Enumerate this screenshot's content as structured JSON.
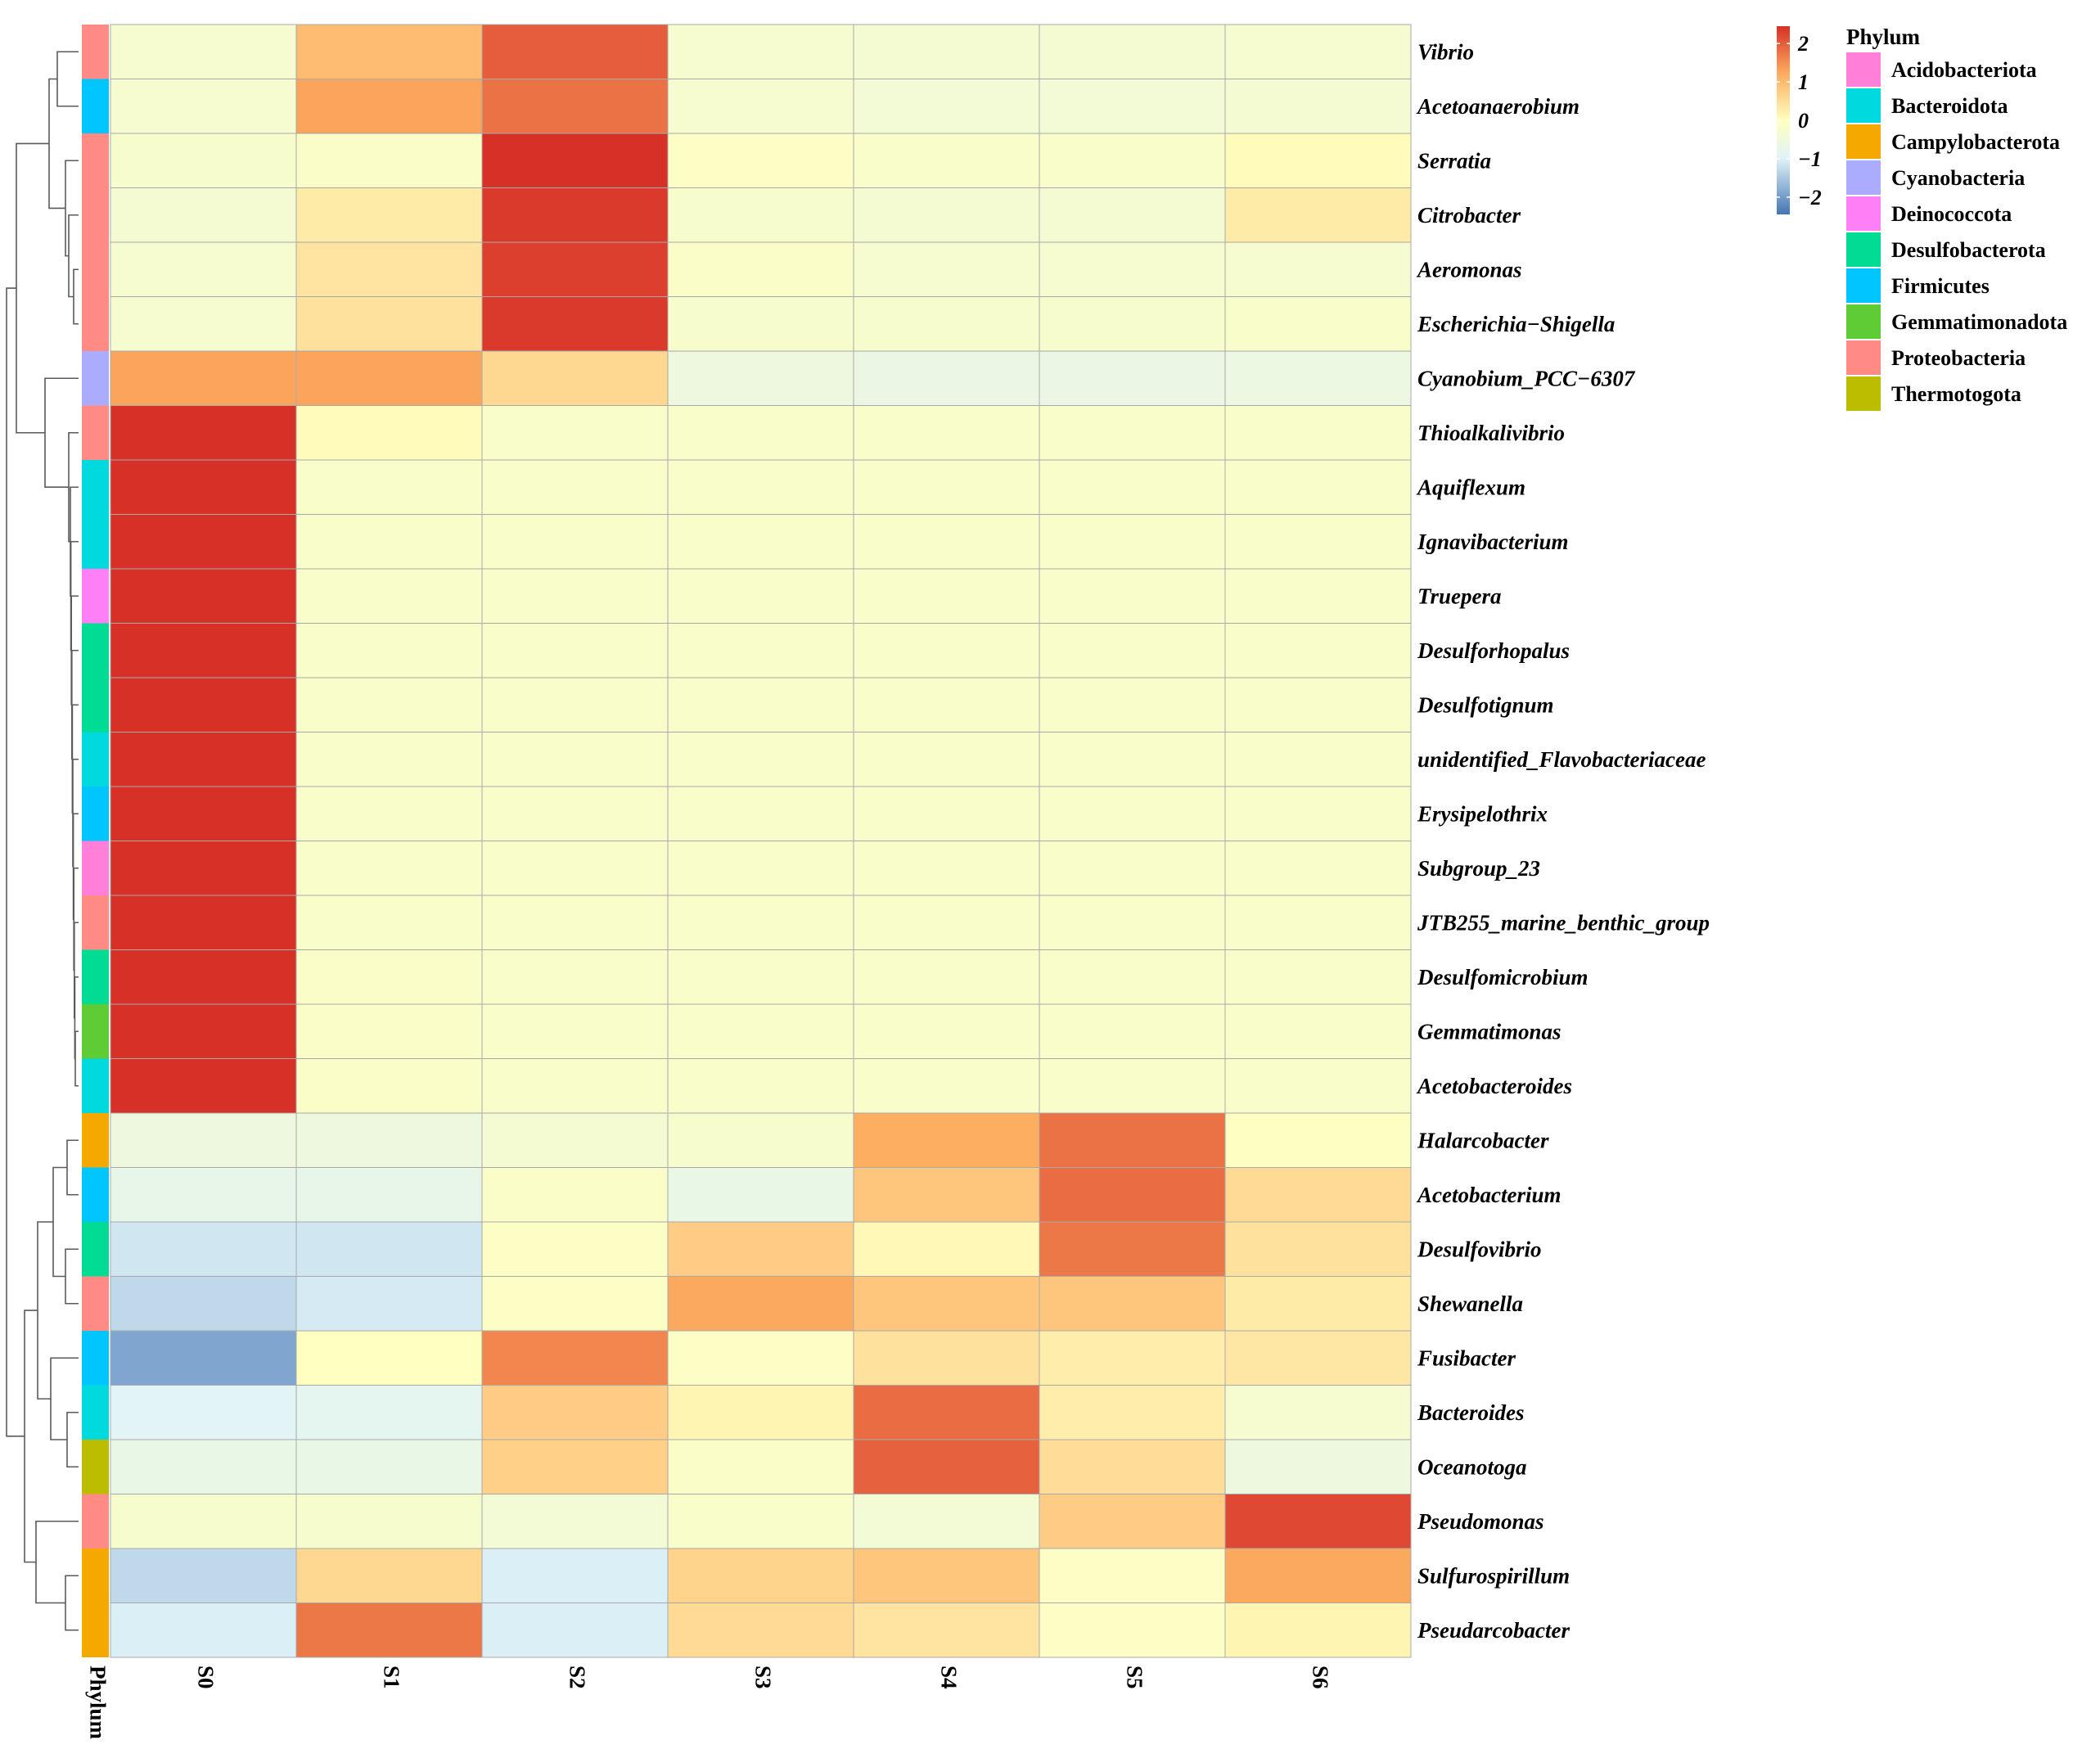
{
  "chart_data": {
    "type": "heatmap",
    "columns": [
      "S0",
      "S1",
      "S2",
      "S3",
      "S4",
      "S5",
      "S6"
    ],
    "rows": [
      {
        "label": "Vibrio",
        "phylum": "Proteobacteria",
        "values": [
          -0.3,
          1.0,
          2.0,
          -0.3,
          -0.35,
          -0.35,
          -0.3
        ]
      },
      {
        "label": "Acetoanaerobium",
        "phylum": "Firmicutes",
        "values": [
          -0.3,
          1.3,
          1.8,
          -0.3,
          -0.4,
          -0.4,
          -0.35
        ]
      },
      {
        "label": "Serratia",
        "phylum": "Proteobacteria",
        "values": [
          -0.25,
          -0.15,
          2.45,
          -0.1,
          -0.2,
          -0.2,
          0.05
        ]
      },
      {
        "label": "Citrobacter",
        "phylum": "Proteobacteria",
        "values": [
          -0.35,
          0.3,
          2.35,
          -0.25,
          -0.35,
          -0.35,
          0.3
        ]
      },
      {
        "label": "Aeromonas",
        "phylum": "Proteobacteria",
        "values": [
          -0.3,
          0.4,
          2.3,
          -0.15,
          -0.3,
          -0.3,
          -0.3
        ]
      },
      {
        "label": "Escherichia−Shigella",
        "phylum": "Proteobacteria",
        "values": [
          -0.3,
          0.45,
          2.35,
          -0.25,
          -0.25,
          -0.25,
          -0.2
        ]
      },
      {
        "label": "Cyanobium_PCC−6307",
        "phylum": "Cyanobacteria",
        "values": [
          1.3,
          1.3,
          0.6,
          -0.55,
          -0.65,
          -0.65,
          -0.6
        ]
      },
      {
        "label": "Thioalkalivibrio",
        "phylum": "Proteobacteria",
        "values": [
          2.45,
          0.05,
          -0.2,
          -0.2,
          -0.2,
          -0.2,
          -0.2
        ]
      },
      {
        "label": "Aquiflexum",
        "phylum": "Bacteroidota",
        "values": [
          2.45,
          -0.2,
          -0.2,
          -0.2,
          -0.2,
          -0.2,
          -0.2
        ]
      },
      {
        "label": "Ignavibacterium",
        "phylum": "Bacteroidota",
        "values": [
          2.45,
          -0.2,
          -0.2,
          -0.2,
          -0.2,
          -0.2,
          -0.2
        ]
      },
      {
        "label": "Truepera",
        "phylum": "Deinococcota",
        "values": [
          2.45,
          -0.2,
          -0.2,
          -0.2,
          -0.2,
          -0.2,
          -0.2
        ]
      },
      {
        "label": "Desulforhopalus",
        "phylum": "Desulfobacterota",
        "values": [
          2.45,
          -0.2,
          -0.2,
          -0.2,
          -0.2,
          -0.2,
          -0.2
        ]
      },
      {
        "label": "Desulfotignum",
        "phylum": "Desulfobacterota",
        "values": [
          2.45,
          -0.2,
          -0.2,
          -0.2,
          -0.2,
          -0.2,
          -0.2
        ]
      },
      {
        "label": "unidentified_Flavobacteriaceae",
        "phylum": "Bacteroidota",
        "values": [
          2.45,
          -0.2,
          -0.2,
          -0.2,
          -0.2,
          -0.2,
          -0.2
        ]
      },
      {
        "label": "Erysipelothrix",
        "phylum": "Firmicutes",
        "values": [
          2.45,
          -0.2,
          -0.2,
          -0.2,
          -0.2,
          -0.2,
          -0.2
        ]
      },
      {
        "label": "Subgroup_23",
        "phylum": "Acidobacteriota",
        "values": [
          2.45,
          -0.2,
          -0.2,
          -0.2,
          -0.2,
          -0.2,
          -0.2
        ]
      },
      {
        "label": "JTB255_marine_benthic_group",
        "phylum": "Proteobacteria",
        "values": [
          2.45,
          -0.2,
          -0.2,
          -0.2,
          -0.2,
          -0.2,
          -0.2
        ]
      },
      {
        "label": "Desulfomicrobium",
        "phylum": "Desulfobacterota",
        "values": [
          2.45,
          -0.15,
          -0.2,
          -0.2,
          -0.2,
          -0.2,
          -0.2
        ]
      },
      {
        "label": "Gemmatimonas",
        "phylum": "Gemmatimonadota",
        "values": [
          2.45,
          -0.15,
          -0.2,
          -0.2,
          -0.2,
          -0.2,
          -0.2
        ]
      },
      {
        "label": "Acetobacteroides",
        "phylum": "Bacteroidota",
        "values": [
          2.45,
          -0.15,
          -0.2,
          -0.2,
          -0.2,
          -0.2,
          -0.2
        ]
      },
      {
        "label": "Halarcobacter",
        "phylum": "Campylobacterota",
        "values": [
          -0.55,
          -0.55,
          -0.35,
          -0.25,
          1.2,
          1.8,
          -0.05
        ]
      },
      {
        "label": "Acetobacterium",
        "phylum": "Firmicutes",
        "values": [
          -0.75,
          -0.75,
          -0.15,
          -0.7,
          0.85,
          1.85,
          0.55
        ]
      },
      {
        "label": "Desulfovibrio",
        "phylum": "Desulfobacterota",
        "values": [
          -1.15,
          -1.15,
          -0.1,
          0.75,
          0.1,
          1.75,
          0.45
        ]
      },
      {
        "label": "Shewanella",
        "phylum": "Proteobacteria",
        "values": [
          -1.3,
          -1.1,
          -0.1,
          1.25,
          0.85,
          0.85,
          0.3
        ]
      },
      {
        "label": "Fusibacter",
        "phylum": "Firmicutes",
        "values": [
          -1.9,
          0.0,
          1.6,
          -0.1,
          0.45,
          0.25,
          0.35
        ]
      },
      {
        "label": "Bacteroides",
        "phylum": "Bacteroidota",
        "values": [
          -0.95,
          -0.85,
          0.75,
          0.15,
          1.85,
          0.25,
          -0.3
        ]
      },
      {
        "label": "Oceanotoga",
        "phylum": "Thermotogota",
        "values": [
          -0.7,
          -0.7,
          0.7,
          -0.15,
          1.95,
          0.5,
          -0.55
        ]
      },
      {
        "label": "Pseudomonas",
        "phylum": "Proteobacteria",
        "values": [
          -0.25,
          -0.25,
          -0.4,
          -0.2,
          -0.4,
          0.75,
          2.2
        ]
      },
      {
        "label": "Sulfurospirillum",
        "phylum": "Campylobacterota",
        "values": [
          -1.3,
          0.6,
          -1.05,
          0.65,
          0.85,
          -0.1,
          1.25
        ]
      },
      {
        "label": "Pseudarcobacter",
        "phylum": "Campylobacterota",
        "values": [
          -1.05,
          1.75,
          -1.05,
          0.55,
          0.4,
          -0.1,
          0.15
        ]
      }
    ],
    "colorbar": {
      "min": -2.45,
      "max": 2.45,
      "ticks": [
        2,
        1,
        0,
        -1,
        -2
      ],
      "tick_labels": [
        "2",
        "1",
        "0",
        "−1",
        "−2"
      ]
    },
    "annotation_title": "Phylum",
    "annotation_column_label": "Phylum"
  },
  "legend": {
    "title": "Phylum",
    "items": [
      {
        "name": "Acidobacteriota",
        "color": "#FF7FD9"
      },
      {
        "name": "Bacteroidota",
        "color": "#00D9DD"
      },
      {
        "name": "Campylobacterota",
        "color": "#F5A800"
      },
      {
        "name": "Cyanobacteria",
        "color": "#ACACFF"
      },
      {
        "name": "Deinococcota",
        "color": "#FF7FF7"
      },
      {
        "name": "Desulfobacterota",
        "color": "#00DC94"
      },
      {
        "name": "Firmicutes",
        "color": "#00C6FF"
      },
      {
        "name": "Gemmatimonadota",
        "color": "#5FCB35"
      },
      {
        "name": "Proteobacteria",
        "color": "#FF8B84"
      },
      {
        "name": "Thermotogota",
        "color": "#BDBD00"
      }
    ]
  },
  "colors": {
    "low": "#4575B4",
    "mid_low": "#E0F3F8",
    "mid": "#FFFFBF",
    "mid_high": "#FDAE61",
    "high": "#D73027",
    "grid": "#A9A9A9",
    "dendrogram": "#5A5A5A"
  }
}
